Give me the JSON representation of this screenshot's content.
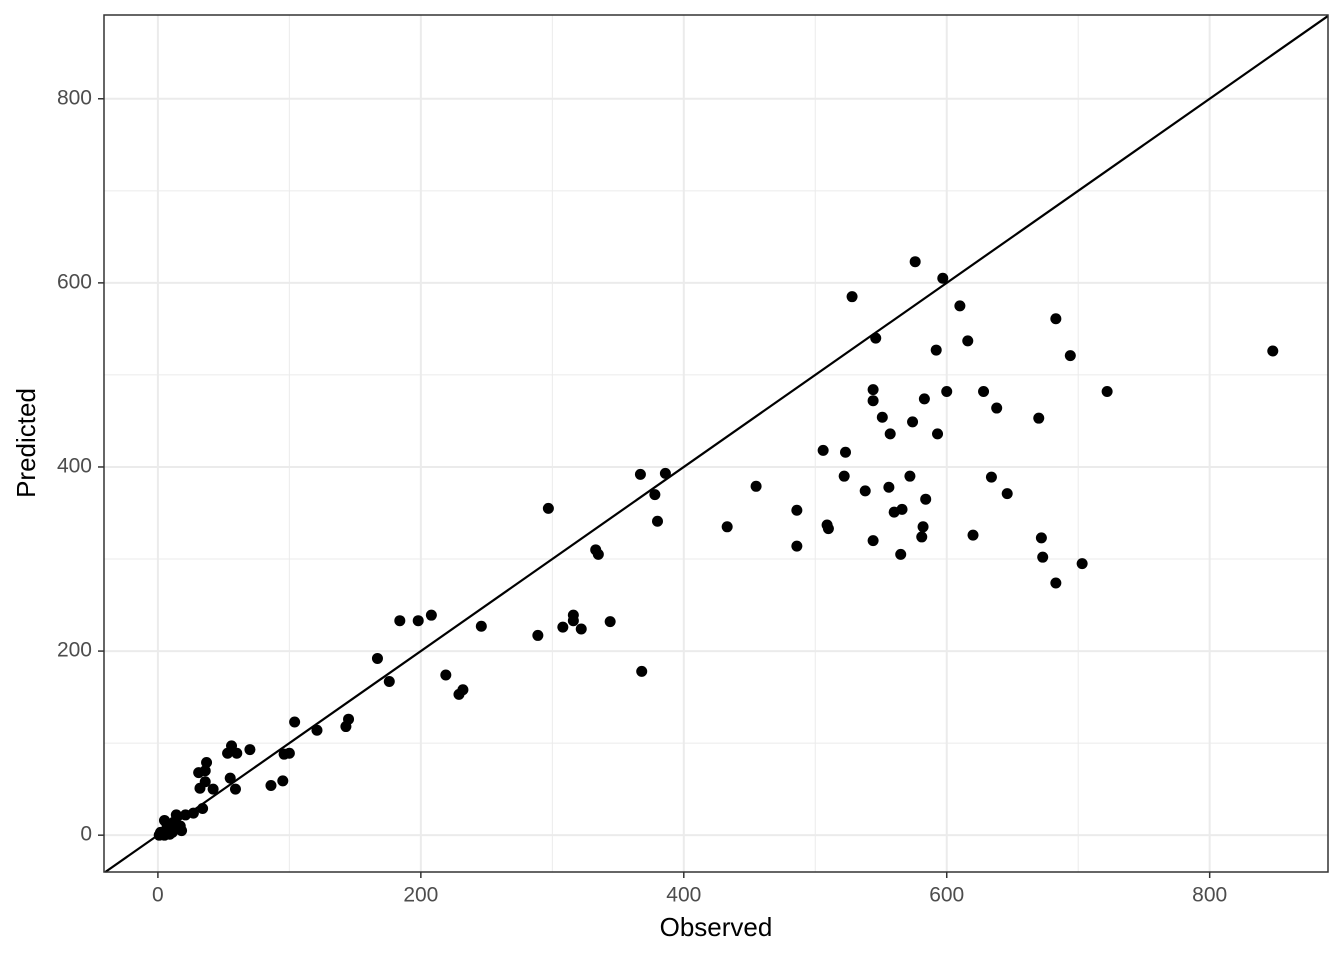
{
  "chart_data": {
    "type": "scatter",
    "x_label": "Observed",
    "y_label": "Predicted",
    "xlim": [
      -41,
      890
    ],
    "ylim": [
      -40,
      891
    ],
    "xticks": [
      0,
      200,
      400,
      600,
      800
    ],
    "yticks": [
      0,
      200,
      400,
      600,
      800
    ],
    "xminor": [
      100,
      300,
      500,
      700
    ],
    "yminor": [
      100,
      300,
      500,
      700
    ],
    "grid": true,
    "identity_line": true,
    "color": "#000000",
    "x": [
      848,
      576,
      597,
      528,
      610,
      683,
      546,
      616,
      592,
      694,
      544,
      600,
      628,
      722,
      583,
      544,
      638,
      551,
      574,
      670,
      593,
      557,
      506,
      523,
      367,
      386,
      522,
      572,
      455,
      634,
      538,
      556,
      378,
      646,
      584,
      297,
      486,
      380,
      560,
      566,
      509,
      510,
      433,
      582,
      672,
      544,
      581,
      620,
      333,
      335,
      486,
      565,
      673,
      703,
      683,
      208,
      316,
      316,
      184,
      198,
      246,
      308,
      344,
      322,
      289,
      167,
      219,
      368,
      176,
      232,
      229,
      104,
      145,
      121,
      143,
      56,
      70,
      60,
      53,
      100,
      96,
      37,
      31,
      36,
      55,
      36,
      95,
      86,
      32,
      42,
      59,
      34,
      27,
      21,
      14,
      5,
      12,
      17,
      18,
      7,
      2,
      5,
      9,
      13,
      11,
      1,
      8
    ],
    "values": [
      526,
      623,
      605,
      585,
      575,
      561,
      540,
      537,
      527,
      521,
      484,
      482,
      482,
      482,
      474,
      472,
      464,
      454,
      449,
      453,
      436,
      436,
      418,
      416,
      392,
      393,
      390,
      390,
      379,
      389,
      374,
      378,
      370,
      371,
      365,
      355,
      353,
      341,
      351,
      354,
      337,
      333,
      335,
      335,
      323,
      320,
      324,
      326,
      310,
      305,
      314,
      305,
      302,
      295,
      274,
      239,
      239,
      233,
      233,
      233,
      227,
      226,
      232,
      224,
      217,
      192,
      174,
      178,
      167,
      158,
      153,
      123,
      126,
      114,
      118,
      97,
      93,
      89,
      89,
      89,
      88,
      79,
      68,
      70,
      62,
      58,
      59,
      54,
      51,
      50,
      50,
      29,
      24,
      22,
      22,
      16,
      14,
      10,
      5,
      10,
      3,
      0,
      1,
      7,
      3,
      0,
      9
    ]
  }
}
